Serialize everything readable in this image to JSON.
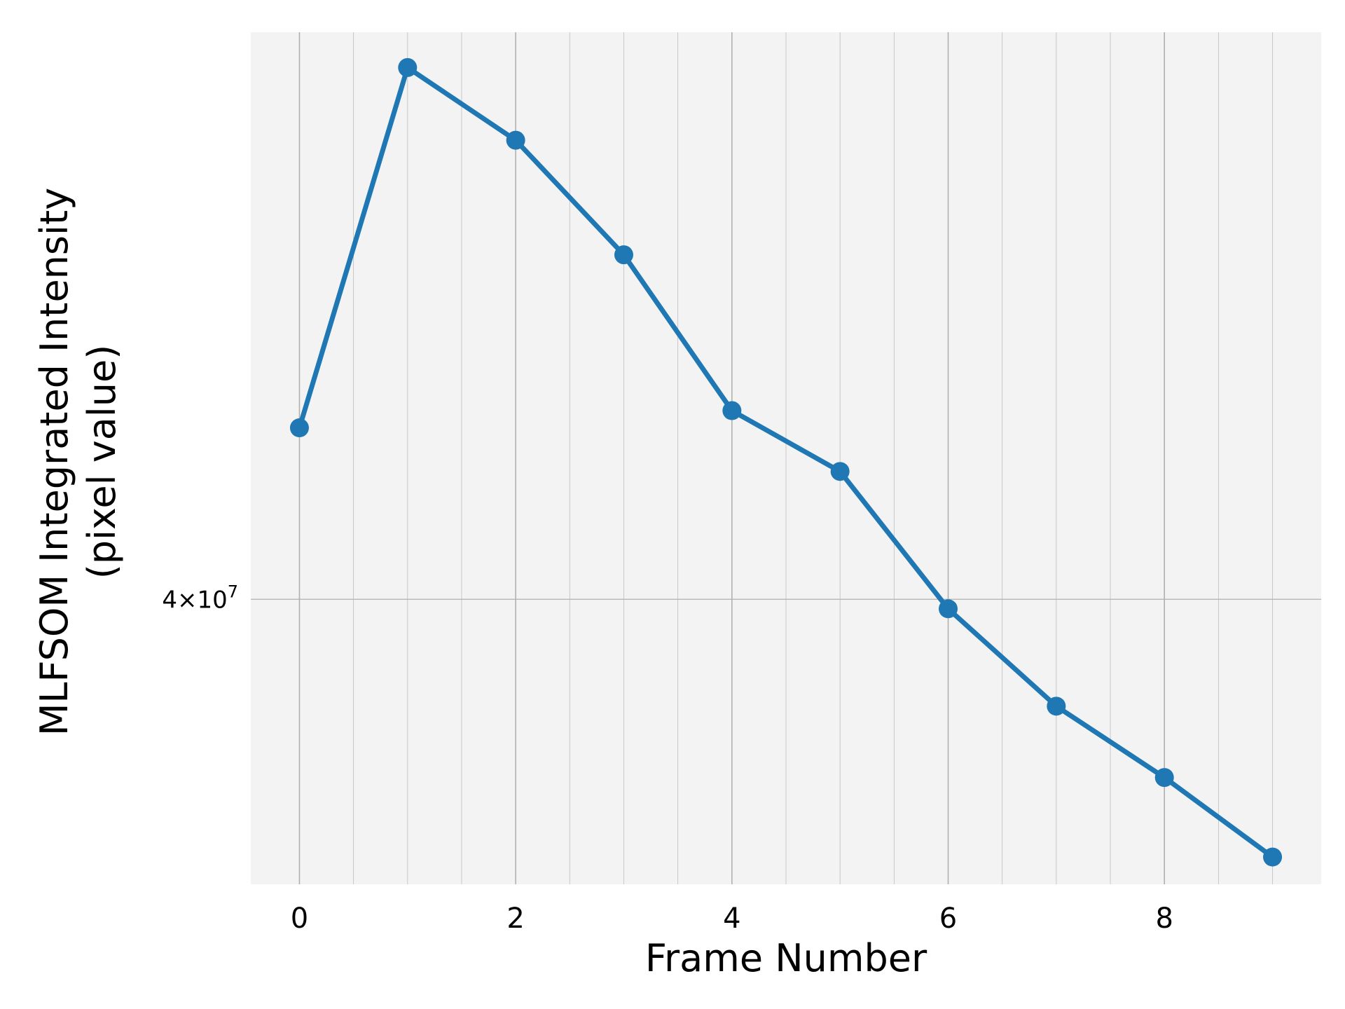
{
  "chart_data": {
    "type": "line",
    "xlabel": "Frame Number",
    "ylabel": [
      "MLFSOM Integrated Intensity",
      "(pixel value)"
    ],
    "x": [
      0,
      1,
      2,
      3,
      4,
      5,
      6,
      7,
      8,
      9
    ],
    "series": [
      {
        "values": [
          43800000,
          53000000,
          51000000,
          48000000,
          44200000,
          42800000,
          39800000,
          37800000,
          36400000,
          34900000
        ]
      }
    ],
    "x_ticks": [
      0,
      2,
      4,
      6,
      8
    ],
    "x_tick_labels": [
      "0",
      "2",
      "4",
      "6",
      "8"
    ],
    "y_ticks": [
      {
        "value": 40000000,
        "base": "4",
        "times": "×",
        "mantissa": "10",
        "exponent": "7"
      }
    ],
    "xlim": [
      -0.45,
      9.45
    ],
    "ylim": [
      34400000,
      54000000
    ],
    "yscale": "log",
    "grid": true,
    "legend": "none",
    "colors": {
      "line": "#1f77b4",
      "plot_background": "#f3f3f3",
      "grid": "#b0b0b0"
    }
  }
}
